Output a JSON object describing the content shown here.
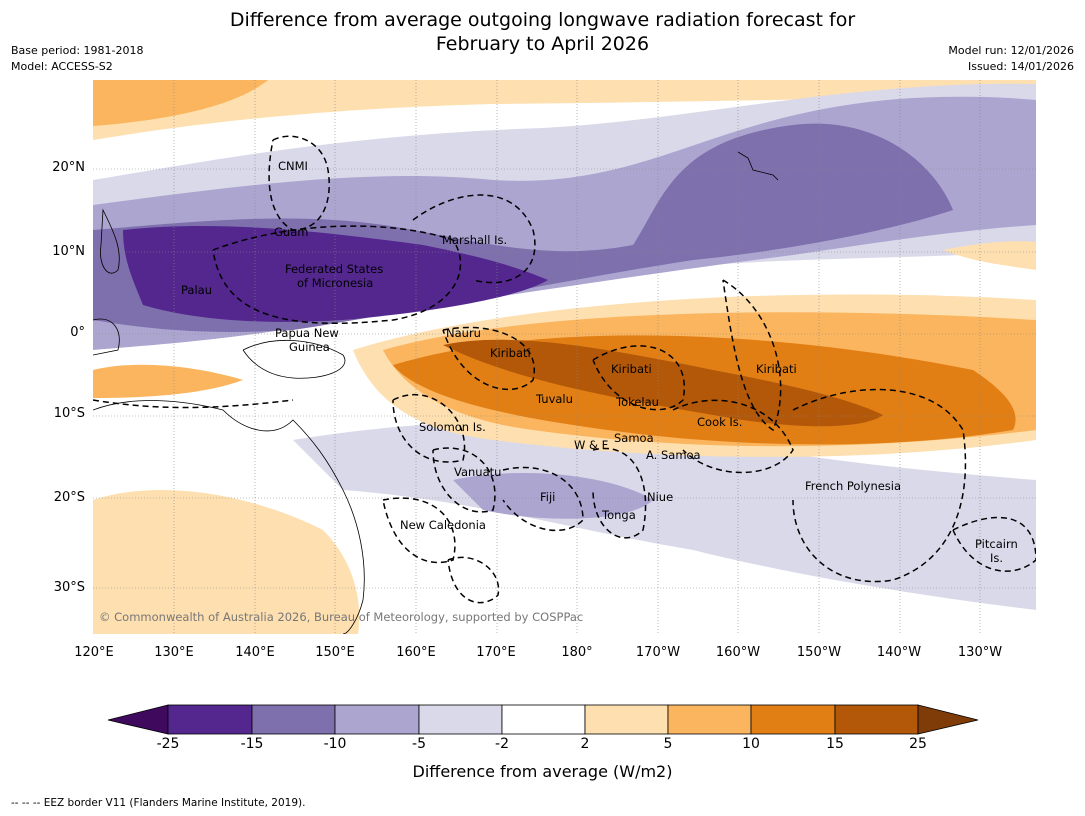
{
  "header": {
    "title_line1": "Difference from average outgoing longwave radiation forecast for",
    "title_line2": "February to April 2026",
    "base_period": "Base period: 1981-2018",
    "model": "Model: ACCESS-S2",
    "model_run": "Model run: 12/01/2026",
    "issued": "Issued: 14/01/2026"
  },
  "map": {
    "lat_labels": [
      "20°N",
      "10°N",
      "0°",
      "10°S",
      "20°S",
      "30°S"
    ],
    "lon_labels": [
      "120°E",
      "130°E",
      "140°E",
      "150°E",
      "160°E",
      "170°E",
      "180°",
      "170°W",
      "160°W",
      "150°W",
      "140°W",
      "130°W"
    ],
    "places": [
      "CNMI",
      "Guam",
      "Marshall Is.",
      "Federated States",
      "of Micronesia",
      "Palau",
      "Papua New",
      "Guinea",
      "Nauru",
      "Kiribati",
      "Kiribati",
      "Kiribati",
      "Tuvalu",
      "Tokelau",
      "Cook Is.",
      "Solomon Is.",
      "W & F",
      "Samoa",
      "A. Samoa",
      "Vanuatu",
      "Fiji",
      "Niue",
      "Tonga",
      "French Polynesia",
      "New Caledonia",
      "Pitcairn",
      "Is."
    ],
    "copyright": "© Commonwealth of Australia 2026, Bureau of Meteorology, supported by COSPPac"
  },
  "legend": {
    "title": "Difference from average (W/m2)",
    "ticks": [
      "-25",
      "-15",
      "-10",
      "-5",
      "-2",
      "2",
      "5",
      "10",
      "15",
      "25"
    ],
    "colors": [
      "#3f0a5e",
      "#54278f",
      "#7e6fad",
      "#aba5d0",
      "#d9d9ea",
      "#ffffff",
      "#fddfb0",
      "#fbb55e",
      "#e17f15",
      "#b25808",
      "#7f3b08"
    ]
  },
  "footer": "--  --  -- EEZ border V11 (Flanders Marine Institute, 2019)."
}
